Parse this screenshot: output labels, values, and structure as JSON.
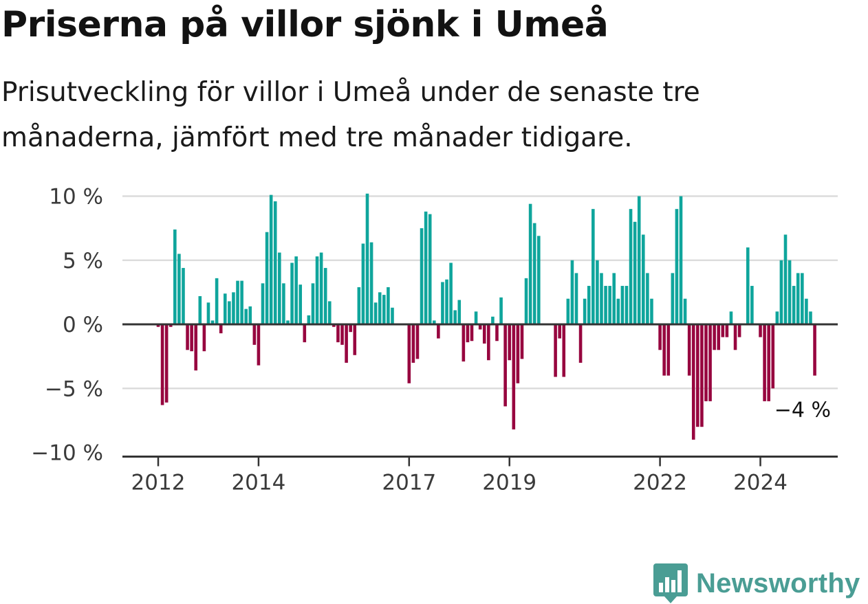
{
  "header": {
    "title": "Priserna på villor sjönk i Umeå",
    "subtitle": "Prisutveckling för villor i Umeå under de senaste tre månaderna, jämfört med tre månader tidigare."
  },
  "brand": {
    "name": "Newsworthy"
  },
  "chart_data": {
    "type": "bar",
    "title": "Priserna på villor sjönk i Umeå",
    "subtitle": "Prisutveckling för villor i Umeå under de senaste tre månaderna, jämfört med tre månader tidigare.",
    "xlabel": "",
    "ylabel": "",
    "ylim": [
      -10,
      10
    ],
    "grid": true,
    "y_ticks": [
      {
        "value": 10,
        "label": "10 %"
      },
      {
        "value": 5,
        "label": "5 %"
      },
      {
        "value": 0,
        "label": "0 %"
      },
      {
        "value": -5,
        "label": "−5 %"
      },
      {
        "value": -10,
        "label": "−10 %"
      }
    ],
    "x_ticks": [
      {
        "index": 0,
        "label": "2012"
      },
      {
        "index": 24,
        "label": "2014"
      },
      {
        "index": 60,
        "label": "2017"
      },
      {
        "index": 84,
        "label": "2019"
      },
      {
        "index": 120,
        "label": "2022"
      },
      {
        "index": 144,
        "label": "2024"
      }
    ],
    "colors": {
      "positive": "#0fa59c",
      "negative": "#97063f",
      "grid": "#dcdcdc",
      "axis": "#333333"
    },
    "end_annotation": "−4 %",
    "values": [
      -0.2,
      -6.3,
      -6.1,
      -0.2,
      7.4,
      5.5,
      4.4,
      -2.0,
      -2.1,
      -3.6,
      2.2,
      -2.1,
      1.7,
      0.3,
      3.6,
      -0.7,
      2.4,
      1.8,
      2.5,
      3.4,
      3.4,
      1.2,
      1.4,
      -1.6,
      -3.2,
      3.2,
      7.2,
      10.1,
      9.6,
      5.6,
      3.2,
      0.3,
      4.8,
      5.3,
      3.1,
      -1.4,
      0.7,
      3.2,
      5.3,
      5.6,
      4.4,
      1.8,
      -0.2,
      -1.4,
      -1.6,
      -3.0,
      -0.6,
      -2.4,
      2.9,
      6.3,
      10.2,
      6.4,
      1.7,
      2.5,
      2.3,
      2.9,
      1.3,
      0,
      0,
      0,
      -4.6,
      -3.0,
      -2.7,
      7.5,
      8.8,
      8.6,
      0.3,
      -1.1,
      3.3,
      3.5,
      4.8,
      1.1,
      1.9,
      -2.9,
      -1.4,
      -1.3,
      1.0,
      -0.4,
      -1.5,
      -2.8,
      0.6,
      -1.3,
      2.1,
      -6.4,
      -2.8,
      -8.2,
      -4.6,
      -2.7,
      3.6,
      9.4,
      7.9,
      6.9,
      0,
      0,
      0,
      -4.1,
      -1.1,
      -4.1,
      2.0,
      5.0,
      4.0,
      -3.0,
      2.0,
      3.0,
      9.0,
      5.0,
      4.0,
      3.0,
      3.0,
      4.0,
      2.0,
      3.0,
      3.0,
      9.0,
      8.0,
      10.0,
      7.0,
      4.0,
      2.0,
      0,
      -2.0,
      -4.0,
      -4.0,
      4.0,
      9.0,
      10.0,
      2.0,
      -4.0,
      -9.0,
      -8.0,
      -8.0,
      -6.0,
      -6.0,
      -2.0,
      -2.0,
      -1.0,
      -1.0,
      1.0,
      -2.0,
      -1.0,
      0,
      6.0,
      3.0,
      0,
      -1.0,
      -6.0,
      -6.0,
      -5.0,
      1.0,
      5.0,
      7.0,
      5.0,
      3.0,
      4.0,
      4.0,
      2.0,
      1.0,
      -4.0
    ]
  }
}
